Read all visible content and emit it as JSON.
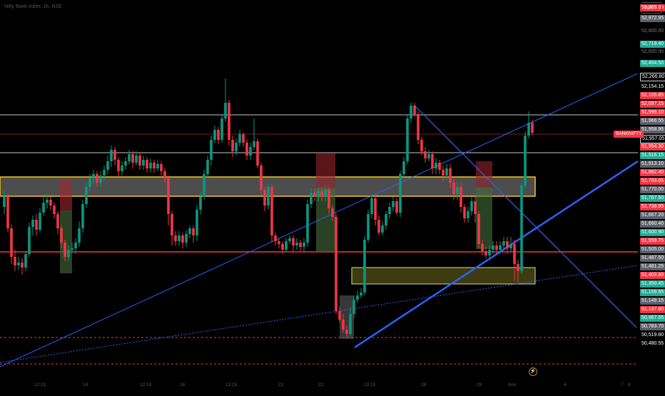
{
  "symbol_info": "Nifty Bank Index, 1h, NSE",
  "currency": "INR",
  "symbol_flag": "BANKNIFTY",
  "price_labels": [
    {
      "text": "53,069.35",
      "style": "red"
    },
    {
      "text": "52,972.95",
      "style": "gray"
    },
    {
      "text": "52,800.00",
      "style": "dim"
    },
    {
      "text": "52,719.40",
      "style": "green"
    },
    {
      "text": "52,600.00",
      "style": "dim"
    },
    {
      "text": "52,404.50",
      "style": "green"
    },
    {
      "text": "52,266.80",
      "style": "box"
    },
    {
      "text": "52,154.15",
      "style": "white"
    },
    {
      "text": "52,105.85",
      "style": "redbg"
    },
    {
      "text": "52,097.15",
      "style": "red"
    },
    {
      "text": "51,999.10",
      "style": "red"
    },
    {
      "text": "51,966.55",
      "style": "gray"
    },
    {
      "text": "51,958.95",
      "style": "gray"
    },
    {
      "text": "51,957.05",
      "style": "box"
    },
    {
      "text": "51,954.30",
      "style": "red"
    },
    {
      "text": "51,916.15",
      "style": "green"
    },
    {
      "text": "51,913.10",
      "style": "gray"
    },
    {
      "text": "51,882.40",
      "style": "red"
    },
    {
      "text": "51,793.65",
      "style": "red"
    },
    {
      "text": "51,770.00",
      "style": "gray"
    },
    {
      "text": "51,767.50",
      "style": "green"
    },
    {
      "text": "51,738.95",
      "style": "red"
    },
    {
      "text": "51,667.20",
      "style": "gray"
    },
    {
      "text": "51,660.40",
      "style": "gray"
    },
    {
      "text": "51,600.90",
      "style": "green"
    },
    {
      "text": "51,559.75",
      "style": "red"
    },
    {
      "text": "51,505.00",
      "style": "gray"
    },
    {
      "text": "51,487.50",
      "style": "gray"
    },
    {
      "text": "51,481.25",
      "style": "gray"
    },
    {
      "text": "51,403.90",
      "style": "red"
    },
    {
      "text": "51,350.45",
      "style": "green"
    },
    {
      "text": "51,159.65",
      "style": "green"
    },
    {
      "text": "51,149.15",
      "style": "gray"
    },
    {
      "text": "51,137.80",
      "style": "red"
    },
    {
      "text": "50,967.55",
      "style": "green"
    },
    {
      "text": "50,783.70",
      "style": "gray"
    },
    {
      "text": "50,519.80",
      "style": "white"
    },
    {
      "text": "50,480.55",
      "style": "white"
    }
  ],
  "time_labels": [
    "12:15",
    "14",
    "12:15",
    "16",
    "12:15",
    "21",
    "22",
    "13:15",
    "28",
    "29",
    "Nov",
    "4",
    "7",
    "8"
  ],
  "colors": {
    "up": "#089981",
    "down": "#f23645",
    "zone_yellow": "#f5c518",
    "trend_blue": "#2962ff",
    "level_red": "#f23645"
  }
}
